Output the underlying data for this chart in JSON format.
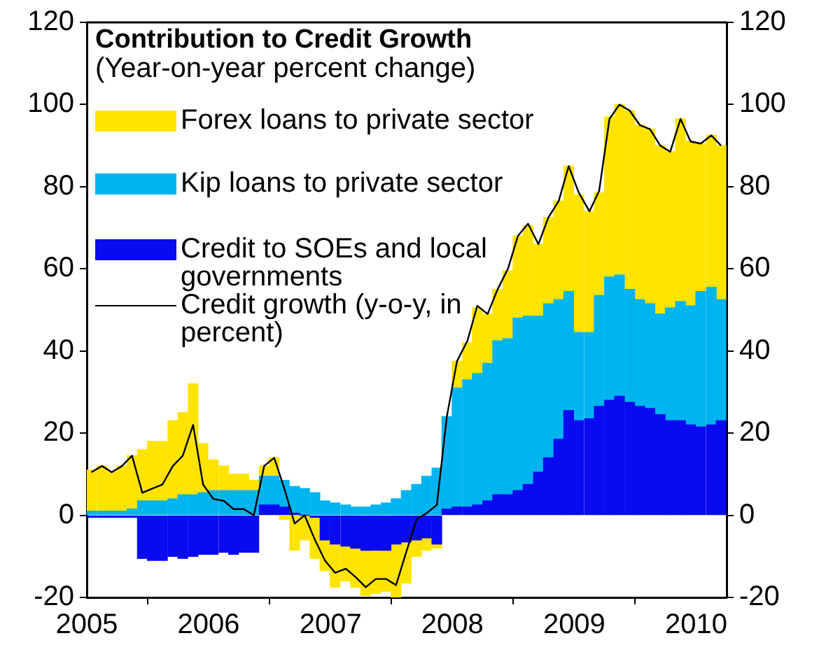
{
  "chart_data": {
    "type": "bar",
    "title": "Contribution to Credit Growth",
    "subtitle": "(Year-on-year percent change)",
    "stacked": true,
    "legend": "top left",
    "x": [
      "2005-01-15",
      "2005-02-15",
      "2005-03-15",
      "2005-04-15",
      "2005-05-15",
      "2005-06-15",
      "2005-07-15",
      "2005-08-15",
      "2005-09-15",
      "2005-10-15",
      "2005-11-15",
      "2005-12-15",
      "2006-01-15",
      "2006-02-15",
      "2006-03-15",
      "2006-04-15",
      "2006-05-15",
      "2006-06-15",
      "2006-07-15",
      "2006-08-15",
      "2006-09-15",
      "2006-10-15",
      "2006-11-15",
      "2006-12-15",
      "2007-01-15",
      "2007-02-15",
      "2007-03-15",
      "2007-04-15",
      "2007-05-15",
      "2007-06-15",
      "2007-07-15",
      "2007-08-15",
      "2007-09-15",
      "2007-10-15",
      "2007-11-15",
      "2007-12-15",
      "2008-01-15",
      "2008-02-15",
      "2008-03-15",
      "2008-04-15",
      "2008-05-15",
      "2008-06-15",
      "2008-07-15",
      "2008-08-15",
      "2008-09-15",
      "2008-10-15",
      "2008-11-15",
      "2008-12-15",
      "2009-01-15",
      "2009-02-15",
      "2009-03-15",
      "2009-04-15",
      "2009-05-15",
      "2009-06-15",
      "2009-07-15",
      "2009-08-15",
      "2009-09-15",
      "2009-10-15",
      "2009-11-15",
      "2009-12-15",
      "2010-01-15",
      "2010-02-15",
      "2010-03-15"
    ],
    "xlim": [
      "2005-01-01",
      "2010-04-01"
    ],
    "xticks": [
      {
        "value": "2005-01-01",
        "label": "2005"
      },
      {
        "value": "2006-01-01",
        "label": "2006"
      },
      {
        "value": "2007-01-01",
        "label": "2007"
      },
      {
        "value": "2008-01-01",
        "label": "2008"
      },
      {
        "value": "2009-01-01",
        "label": "2009"
      },
      {
        "value": "2010-01-01",
        "label": "2010"
      }
    ],
    "ylim": [
      -20,
      120
    ],
    "yticks": [
      -20,
      0,
      20,
      40,
      60,
      80,
      100,
      120
    ],
    "y2lim": [
      -20,
      120
    ],
    "y2ticks": [
      -20,
      0,
      20,
      40,
      60,
      80,
      100,
      120
    ],
    "series": [
      {
        "name": "Credit to SOEs and local governments",
        "color": "#0a0af0",
        "values": [
          -0.5,
          -0.5,
          -0.5,
          -0.5,
          -0.5,
          -10.5,
          -11,
          -11,
          -10,
          -10.5,
          -10,
          -9.5,
          -9.5,
          -9,
          -9.5,
          -9,
          -9,
          2.5,
          2.5,
          2,
          0.5,
          0,
          -0.5,
          -6,
          -7,
          -7.5,
          -8,
          -8.5,
          -8.5,
          -8.5,
          -7,
          -6.5,
          -6,
          -5.5,
          -7,
          1.5,
          2,
          2,
          2.5,
          3.5,
          5,
          5,
          6,
          7.5,
          10.5,
          14,
          18.5,
          25.5,
          23,
          23.5,
          26.5,
          28,
          29,
          27.5,
          26.5,
          26,
          24.5,
          23,
          23,
          22,
          21.5,
          22,
          23
        ]
      },
      {
        "name": "Kip loans to private sector",
        "color": "#00b4f0",
        "values": [
          1,
          1,
          1,
          1,
          1.5,
          3.5,
          3.5,
          3.5,
          4,
          5,
          5,
          5.5,
          6,
          6,
          6,
          6,
          6,
          7,
          7,
          6.5,
          6.5,
          6.5,
          5.5,
          3.5,
          3,
          2.5,
          2,
          2,
          2.5,
          3,
          4,
          6,
          7.5,
          9.5,
          11.5,
          22.5,
          29,
          31,
          32,
          33.5,
          37.5,
          38,
          42,
          41,
          38,
          37.5,
          34,
          29,
          21.5,
          21,
          27,
          30,
          29.5,
          27.5,
          26,
          25.5,
          24.5,
          27.5,
          29,
          29,
          33,
          33.5,
          29.5
        ]
      },
      {
        "name": "Forex loans to private sector",
        "color": "#ffe400",
        "values": [
          10,
          11,
          9.5,
          11,
          13,
          12.5,
          14.5,
          14.5,
          19,
          20,
          27,
          12,
          7.5,
          6,
          4,
          4,
          2.5,
          2.5,
          4.5,
          -1,
          -8.5,
          -6,
          -10,
          -7.5,
          -10.5,
          -8.5,
          -9.5,
          -11,
          -10.5,
          -10,
          -13,
          -10,
          -4,
          -3,
          -1,
          0,
          6.5,
          9,
          16,
          12,
          12.5,
          16.5,
          20,
          22,
          17.5,
          21,
          24,
          30.5,
          33.5,
          29.5,
          25,
          39,
          41.5,
          43.5,
          42.5,
          42.5,
          41,
          38,
          44.5,
          40,
          36,
          37,
          37.5
        ]
      },
      {
        "name": "Credit growth (y-o-y, in percent)",
        "type": "line",
        "color": "#000000",
        "values": [
          10.5,
          12,
          10.5,
          12,
          14.5,
          5.5,
          6.5,
          7.5,
          12,
          14.5,
          22,
          7.5,
          4,
          3.5,
          1.5,
          1.5,
          0,
          12,
          14,
          6.5,
          -2,
          0,
          -6,
          -11,
          -14,
          -13,
          -15,
          -17.5,
          -15.5,
          -15.5,
          -17,
          -9,
          -1,
          0.5,
          2.5,
          24,
          37.5,
          42.5,
          51,
          49,
          55,
          60,
          68,
          71,
          66,
          72.5,
          76.5,
          85,
          78.5,
          74,
          79,
          96.5,
          100,
          98.5,
          95,
          94,
          90,
          88.5,
          96.5,
          91,
          90.5,
          92.5,
          90
        ]
      }
    ]
  }
}
